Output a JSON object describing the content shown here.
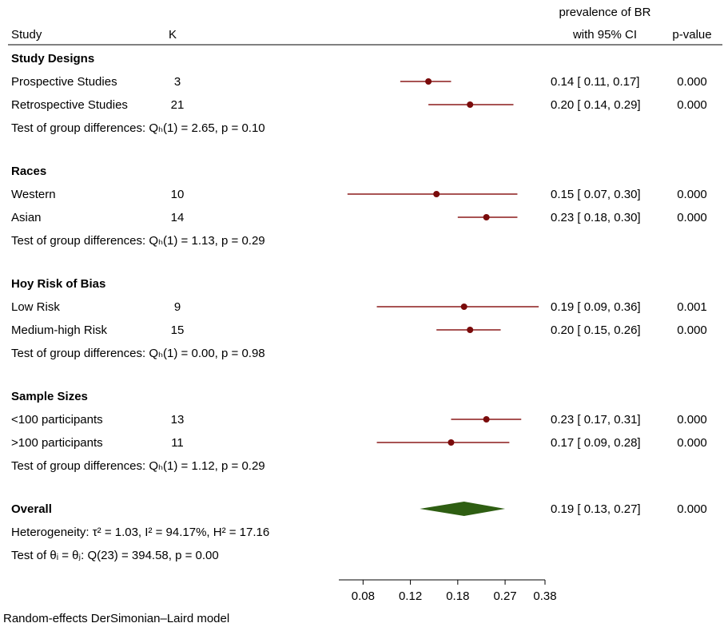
{
  "header": {
    "study": "Study",
    "k": "K",
    "effect_line1": "prevalence of BR",
    "effect_line2": "with 95% CI",
    "pvalue": "p-value"
  },
  "colors": {
    "ci_line": "#8b1a1a",
    "point": "#7a0b0b",
    "diamond": "#2e5e12",
    "text": "#111111"
  },
  "chart_data": {
    "type": "forest",
    "x_axis": {
      "ticks": [
        0.08,
        0.12,
        0.18,
        0.27,
        0.38
      ],
      "tick_labels": [
        "0.08",
        "0.12",
        "0.18",
        "0.27",
        "0.38"
      ],
      "scale": "log",
      "range": [
        0.065,
        0.38
      ]
    },
    "rows": [
      {
        "kind": "group",
        "label": "Study Designs"
      },
      {
        "kind": "study",
        "label": "Prospective Studies",
        "k": "3",
        "est": 0.14,
        "lo": 0.11,
        "hi": 0.17,
        "ci_text": "0.14 [ 0.11,  0.17]",
        "p": "0.000"
      },
      {
        "kind": "study",
        "label": "Retrospective Studies",
        "k": "21",
        "est": 0.2,
        "lo": 0.14,
        "hi": 0.29,
        "ci_text": "0.20 [ 0.14,  0.29]",
        "p": "0.000"
      },
      {
        "kind": "test",
        "text": "Test of group differences: Qₕ(1) = 2.65, p = 0.10"
      },
      {
        "kind": "gap"
      },
      {
        "kind": "group",
        "label": "Races"
      },
      {
        "kind": "study",
        "label": "Western",
        "k": "10",
        "est": 0.15,
        "lo": 0.07,
        "hi": 0.3,
        "ci_text": "0.15 [ 0.07,  0.30]",
        "p": "0.000"
      },
      {
        "kind": "study",
        "label": "Asian",
        "k": "14",
        "est": 0.23,
        "lo": 0.18,
        "hi": 0.3,
        "ci_text": "0.23 [ 0.18,  0.30]",
        "p": "0.000"
      },
      {
        "kind": "test",
        "text": "Test of group differences: Qₕ(1) = 1.13, p = 0.29"
      },
      {
        "kind": "gap"
      },
      {
        "kind": "group",
        "label": "Hoy Risk of Bias"
      },
      {
        "kind": "study",
        "label": "Low Risk",
        "k": "9",
        "est": 0.19,
        "lo": 0.09,
        "hi": 0.36,
        "ci_text": "0.19 [ 0.09,  0.36]",
        "p": "0.001"
      },
      {
        "kind": "study",
        "label": "Medium-high Risk",
        "k": "15",
        "est": 0.2,
        "lo": 0.15,
        "hi": 0.26,
        "ci_text": "0.20 [ 0.15,  0.26]",
        "p": "0.000"
      },
      {
        "kind": "test",
        "text": "Test of group differences: Qₕ(1) = 0.00, p = 0.98"
      },
      {
        "kind": "gap"
      },
      {
        "kind": "group",
        "label": "Sample Sizes"
      },
      {
        "kind": "study",
        "label": "<100 participants",
        "k": "13",
        "est": 0.23,
        "lo": 0.17,
        "hi": 0.31,
        "ci_text": "0.23 [ 0.17,  0.31]",
        "p": "0.000"
      },
      {
        "kind": "study",
        "label": ">100 participants",
        "k": "11",
        "est": 0.17,
        "lo": 0.09,
        "hi": 0.28,
        "ci_text": "0.17 [ 0.09,  0.28]",
        "p": "0.000"
      },
      {
        "kind": "test",
        "text": "Test of group differences: Qₕ(1) = 1.12, p = 0.29"
      },
      {
        "kind": "gap"
      },
      {
        "kind": "overall",
        "label": "Overall",
        "est": 0.19,
        "lo": 0.13,
        "hi": 0.27,
        "ci_text": "0.19 [ 0.13,  0.27]",
        "p": "0.000"
      },
      {
        "kind": "note",
        "text": "Heterogeneity: τ² = 1.03, I² = 94.17%, H² = 17.16"
      },
      {
        "kind": "note",
        "text": "Test of θᵢ = θⱼ: Q(23) = 394.58, p = 0.00"
      }
    ]
  },
  "footer": {
    "model_note": "Random-effects DerSimonian–Laird model"
  }
}
